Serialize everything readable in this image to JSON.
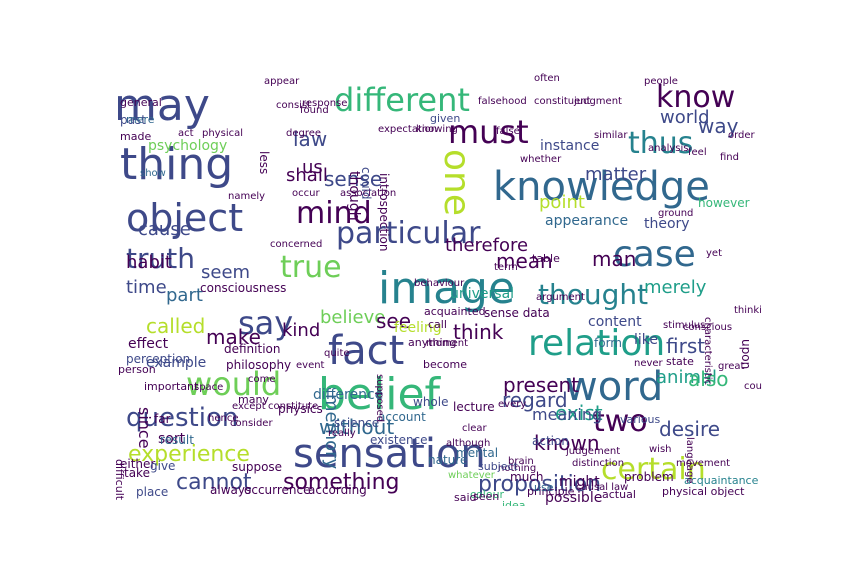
{
  "palette": {
    "dark_purple": "#440154",
    "indigo": "#3e4989",
    "blue": "#31688e",
    "teal": "#26828e",
    "green_teal": "#1f9e89",
    "green": "#35b779",
    "light_green": "#6ece58",
    "yellow_green": "#b5de2b",
    "yellow": "#fde725"
  },
  "words": [
    {
      "text": "may",
      "size": 44,
      "color": "#3e4989"
    },
    {
      "text": "thing",
      "size": 44,
      "color": "#3e4989"
    },
    {
      "text": "object",
      "size": 38,
      "color": "#3e4989"
    },
    {
      "text": "mind",
      "size": 30,
      "color": "#440154"
    },
    {
      "text": "different",
      "size": 32,
      "color": "#35b779"
    },
    {
      "text": "must",
      "size": 32,
      "color": "#440154"
    },
    {
      "text": "know",
      "size": 30,
      "color": "#440154"
    },
    {
      "text": "knowledge",
      "size": 40,
      "color": "#31688e"
    },
    {
      "text": "one",
      "size": 36,
      "color": "#b5de2b"
    },
    {
      "text": "particular",
      "size": 30,
      "color": "#3e4989"
    },
    {
      "text": "case",
      "size": 36,
      "color": "#31688e"
    },
    {
      "text": "view",
      "size": 26,
      "color": "#1f9e89"
    },
    {
      "text": "thus",
      "size": 30,
      "color": "#26828e"
    },
    {
      "text": "image",
      "size": 44,
      "color": "#26828e"
    },
    {
      "text": "thought",
      "size": 28,
      "color": "#26828e"
    },
    {
      "text": "true",
      "size": 30,
      "color": "#6ece58"
    },
    {
      "text": "truth",
      "size": 28,
      "color": "#3e4989"
    },
    {
      "text": "say",
      "size": 32,
      "color": "#3e4989"
    },
    {
      "text": "fact",
      "size": 40,
      "color": "#3e4989"
    },
    {
      "text": "relation",
      "size": 36,
      "color": "#1f9e89"
    },
    {
      "text": "would",
      "size": 32,
      "color": "#6ece58"
    },
    {
      "text": "belief",
      "size": 44,
      "color": "#35b779"
    },
    {
      "text": "word",
      "size": 40,
      "color": "#31688e"
    },
    {
      "text": "two",
      "size": 30,
      "color": "#440154"
    },
    {
      "text": "question",
      "size": 26,
      "color": "#3e4989"
    },
    {
      "text": "sensation",
      "size": 40,
      "color": "#3e4989"
    },
    {
      "text": "certain",
      "size": 30,
      "color": "#b5de2b"
    },
    {
      "text": "experience",
      "size": 22,
      "color": "#b5de2b"
    },
    {
      "text": "cannot",
      "size": 22,
      "color": "#3e4989"
    },
    {
      "text": "something",
      "size": 22,
      "color": "#440154"
    },
    {
      "text": "proposition",
      "size": 22,
      "color": "#3e4989"
    },
    {
      "text": "memory",
      "size": 18,
      "color": "#31688e"
    },
    {
      "text": "without",
      "size": 20,
      "color": "#31688e"
    },
    {
      "text": "desire",
      "size": 20,
      "color": "#3e4989"
    },
    {
      "text": "known",
      "size": 20,
      "color": "#440154"
    },
    {
      "text": "exist",
      "size": 20,
      "color": "#1f9e89"
    },
    {
      "text": "meaning",
      "size": 16,
      "color": "#3e4989"
    },
    {
      "text": "present",
      "size": 20,
      "color": "#440154"
    },
    {
      "text": "regard",
      "size": 20,
      "color": "#3e4989"
    },
    {
      "text": "animal",
      "size": 18,
      "color": "#1f9e89"
    },
    {
      "text": "also",
      "size": 20,
      "color": "#35b779"
    },
    {
      "text": "first",
      "size": 20,
      "color": "#3e4989"
    },
    {
      "text": "think",
      "size": 20,
      "color": "#440154"
    },
    {
      "text": "believe",
      "size": 18,
      "color": "#6ece58"
    },
    {
      "text": "see",
      "size": 20,
      "color": "#440154"
    },
    {
      "text": "kind",
      "size": 18,
      "color": "#440154"
    },
    {
      "text": "make",
      "size": 20,
      "color": "#440154"
    },
    {
      "text": "called",
      "size": 20,
      "color": "#b5de2b"
    },
    {
      "text": "part",
      "size": 18,
      "color": "#31688e"
    },
    {
      "text": "seem",
      "size": 18,
      "color": "#3e4989"
    },
    {
      "text": "mean",
      "size": 20,
      "color": "#440154"
    },
    {
      "text": "man",
      "size": 20,
      "color": "#440154"
    },
    {
      "text": "merely",
      "size": 18,
      "color": "#1f9e89"
    },
    {
      "text": "therefore",
      "size": 18,
      "color": "#440154"
    },
    {
      "text": "point",
      "size": 18,
      "color": "#b5de2b"
    },
    {
      "text": "matter",
      "size": 18,
      "color": "#3e4989"
    },
    {
      "text": "world",
      "size": 18,
      "color": "#3e4989"
    },
    {
      "text": "way",
      "size": 20,
      "color": "#3e4989"
    },
    {
      "text": "sense",
      "size": 20,
      "color": "#3e4989"
    },
    {
      "text": "shall",
      "size": 18,
      "color": "#440154"
    },
    {
      "text": "law",
      "size": 20,
      "color": "#3e4989"
    },
    {
      "text": "us",
      "size": 18,
      "color": "#440154"
    },
    {
      "text": "cause",
      "size": 18,
      "color": "#3e4989"
    },
    {
      "text": "habit",
      "size": 18,
      "color": "#440154"
    },
    {
      "text": "time",
      "size": 18,
      "color": "#3e4989"
    },
    {
      "text": "psychology",
      "size": 14,
      "color": "#6ece58"
    },
    {
      "text": "consciousness",
      "size": 12,
      "color": "#440154"
    },
    {
      "text": "effect",
      "size": 14,
      "color": "#440154"
    },
    {
      "text": "though",
      "size": 14,
      "color": "#440154"
    },
    {
      "text": "could",
      "size": 12,
      "color": "#3e4989"
    },
    {
      "text": "introspection",
      "size": 12,
      "color": "#440154"
    },
    {
      "text": "appearance",
      "size": 14,
      "color": "#31688e"
    },
    {
      "text": "instance",
      "size": 14,
      "color": "#3e4989"
    },
    {
      "text": "theory",
      "size": 14,
      "color": "#3e4989"
    },
    {
      "text": "however",
      "size": 12,
      "color": "#35b779"
    },
    {
      "text": "universal",
      "size": 14,
      "color": "#1f9e89"
    },
    {
      "text": "content",
      "size": 14,
      "color": "#3e4989"
    },
    {
      "text": "form",
      "size": 12,
      "color": "#31688e"
    },
    {
      "text": "like",
      "size": 14,
      "color": "#3e4989"
    },
    {
      "text": "sense data",
      "size": 12,
      "color": "#440154"
    },
    {
      "text": "feeling",
      "size": 14,
      "color": "#b5de2b"
    },
    {
      "text": "perception",
      "size": 12,
      "color": "#3e4989"
    },
    {
      "text": "example",
      "size": 14,
      "color": "#3e4989"
    },
    {
      "text": "since",
      "size": 16,
      "color": "#440154"
    },
    {
      "text": "difference",
      "size": 14,
      "color": "#31688e"
    },
    {
      "text": "physics",
      "size": 12,
      "color": "#440154"
    },
    {
      "text": "might",
      "size": 14,
      "color": "#440154"
    },
    {
      "text": "sort",
      "size": 14,
      "color": "#440154"
    },
    {
      "text": "possible",
      "size": 14,
      "color": "#440154"
    },
    {
      "text": "reason",
      "size": 14,
      "color": "#440154"
    },
    {
      "text": "place",
      "size": 12,
      "color": "#3e4989"
    },
    {
      "text": "according",
      "size": 12,
      "color": "#440154"
    },
    {
      "text": "occurrence",
      "size": 12,
      "color": "#440154"
    },
    {
      "text": "physical object",
      "size": 11,
      "color": "#440154"
    },
    {
      "text": "acquaintance",
      "size": 11,
      "color": "#26828e"
    },
    {
      "text": "mental",
      "size": 12,
      "color": "#31688e"
    },
    {
      "text": "either",
      "size": 12,
      "color": "#440154"
    },
    {
      "text": "suppose",
      "size": 12,
      "color": "#440154"
    },
    {
      "text": "always",
      "size": 12,
      "color": "#440154"
    },
    {
      "text": "take",
      "size": 12,
      "color": "#440154"
    },
    {
      "text": "definition",
      "size": 12,
      "color": "#440154"
    },
    {
      "text": "philosophy",
      "size": 12,
      "color": "#440154"
    },
    {
      "text": "nature",
      "size": 12,
      "color": "#31688e"
    },
    {
      "text": "colour",
      "size": 11,
      "color": "#35b779"
    },
    {
      "text": "principle",
      "size": 11,
      "color": "#440154"
    },
    {
      "text": "whatever",
      "size": 10,
      "color": "#6ece58"
    },
    {
      "text": "much",
      "size": 12,
      "color": "#440154"
    },
    {
      "text": "even",
      "size": 12,
      "color": "#3e4989"
    },
    {
      "text": "actual",
      "size": 11,
      "color": "#440154"
    },
    {
      "text": "problem",
      "size": 12,
      "color": "#440154"
    },
    {
      "text": "lecture",
      "size": 12,
      "color": "#440154"
    },
    {
      "text": "whole",
      "size": 12,
      "color": "#3e4989"
    },
    {
      "text": "science",
      "size": 12,
      "color": "#3e4989"
    },
    {
      "text": "account",
      "size": 12,
      "color": "#31688e"
    },
    {
      "text": "existence",
      "size": 12,
      "color": "#3e4989"
    },
    {
      "text": "action",
      "size": 12,
      "color": "#3e4989"
    },
    {
      "text": "general",
      "size": 11,
      "color": "#440154"
    },
    {
      "text": "past",
      "size": 12,
      "color": "#3e4989"
    },
    {
      "text": "mere",
      "size": 11,
      "color": "#31688e"
    },
    {
      "text": "made",
      "size": 11,
      "color": "#440154"
    },
    {
      "text": "show",
      "size": 10,
      "color": "#31688e"
    },
    {
      "text": "important",
      "size": 11,
      "color": "#440154"
    },
    {
      "text": "far",
      "size": 12,
      "color": "#440154"
    },
    {
      "text": "result",
      "size": 12,
      "color": "#31688e"
    },
    {
      "text": "give",
      "size": 12,
      "color": "#3e4989"
    },
    {
      "text": "person",
      "size": 11,
      "color": "#440154"
    },
    {
      "text": "difficult",
      "size": 11,
      "color": "#440154"
    },
    {
      "text": "nothing",
      "size": 10,
      "color": "#440154"
    },
    {
      "text": "brain",
      "size": 10,
      "color": "#440154"
    },
    {
      "text": "said",
      "size": 11,
      "color": "#440154"
    },
    {
      "text": "idea",
      "size": 11,
      "color": "#35b779"
    },
    {
      "text": "seen",
      "size": 11,
      "color": "#440154"
    },
    {
      "text": "subject",
      "size": 11,
      "color": "#3e4989"
    },
    {
      "text": "use",
      "size": 11,
      "color": "#31688e"
    },
    {
      "text": "causal law",
      "size": 10,
      "color": "#440154"
    },
    {
      "text": "clear",
      "size": 10,
      "color": "#440154"
    },
    {
      "text": "judgement",
      "size": 10,
      "color": "#440154"
    },
    {
      "text": "distinction",
      "size": 10,
      "color": "#440154"
    },
    {
      "text": "various",
      "size": 11,
      "color": "#3e4989"
    },
    {
      "text": "state",
      "size": 11,
      "color": "#440154"
    },
    {
      "text": "upon",
      "size": 12,
      "color": "#440154"
    },
    {
      "text": "course",
      "size": 10,
      "color": "#440154"
    },
    {
      "text": "great",
      "size": 10,
      "color": "#440154"
    },
    {
      "text": "characteristic",
      "size": 10,
      "color": "#440154"
    },
    {
      "text": "stimulus",
      "size": 10,
      "color": "#440154"
    },
    {
      "text": "thinking",
      "size": 10,
      "color": "#440154"
    },
    {
      "text": "ground",
      "size": 10,
      "color": "#440154"
    },
    {
      "text": "yet",
      "size": 10,
      "color": "#440154"
    },
    {
      "text": "order",
      "size": 10,
      "color": "#440154"
    },
    {
      "text": "find",
      "size": 10,
      "color": "#440154"
    },
    {
      "text": "feel",
      "size": 10,
      "color": "#440154"
    },
    {
      "text": "analysis",
      "size": 10,
      "color": "#440154"
    },
    {
      "text": "people",
      "size": 10,
      "color": "#440154"
    },
    {
      "text": "false",
      "size": 10,
      "color": "#440154"
    },
    {
      "text": "similar",
      "size": 10,
      "color": "#440154"
    },
    {
      "text": "given",
      "size": 11,
      "color": "#3e4989"
    },
    {
      "text": "found",
      "size": 10,
      "color": "#440154"
    },
    {
      "text": "appear",
      "size": 10,
      "color": "#440154"
    },
    {
      "text": "consist",
      "size": 10,
      "color": "#440154"
    },
    {
      "text": "less",
      "size": 12,
      "color": "#440154"
    },
    {
      "text": "degree",
      "size": 10,
      "color": "#440154"
    },
    {
      "text": "occur",
      "size": 10,
      "color": "#440154"
    },
    {
      "text": "act",
      "size": 10,
      "color": "#440154"
    },
    {
      "text": "physical",
      "size": 10,
      "color": "#440154"
    },
    {
      "text": "namely",
      "size": 10,
      "color": "#440154"
    },
    {
      "text": "association",
      "size": 10,
      "color": "#440154"
    },
    {
      "text": "concerned",
      "size": 10,
      "color": "#440154"
    },
    {
      "text": "come",
      "size": 10,
      "color": "#440154"
    },
    {
      "text": "many",
      "size": 11,
      "color": "#440154"
    },
    {
      "text": "except",
      "size": 10,
      "color": "#440154"
    },
    {
      "text": "consider",
      "size": 10,
      "color": "#440154"
    },
    {
      "text": "hence",
      "size": 10,
      "color": "#440154"
    },
    {
      "text": "constitute",
      "size": 10,
      "color": "#440154"
    },
    {
      "text": "supposed",
      "size": 10,
      "color": "#440154"
    },
    {
      "text": "really",
      "size": 10,
      "color": "#440154"
    },
    {
      "text": "moment",
      "size": 10,
      "color": "#440154"
    },
    {
      "text": "become",
      "size": 11,
      "color": "#440154"
    },
    {
      "text": "anything",
      "size": 11,
      "color": "#440154"
    },
    {
      "text": "acquainted",
      "size": 11,
      "color": "#440154"
    },
    {
      "text": "call",
      "size": 11,
      "color": "#440154"
    },
    {
      "text": "term",
      "size": 10,
      "color": "#440154"
    },
    {
      "text": "table",
      "size": 11,
      "color": "#440154"
    },
    {
      "text": "argument",
      "size": 10,
      "color": "#440154"
    },
    {
      "text": "whether",
      "size": 10,
      "color": "#440154"
    },
    {
      "text": "conscious",
      "size": 10,
      "color": "#440154"
    },
    {
      "text": "movement",
      "size": 10,
      "color": "#440154"
    },
    {
      "text": "every",
      "size": 10,
      "color": "#440154"
    },
    {
      "text": "although",
      "size": 10,
      "color": "#440154"
    },
    {
      "text": "quite",
      "size": 10,
      "color": "#440154"
    },
    {
      "text": "event",
      "size": 10,
      "color": "#440154"
    },
    {
      "text": "space",
      "size": 10,
      "color": "#440154"
    },
    {
      "text": "behaviour",
      "size": 10,
      "color": "#440154"
    },
    {
      "text": "never",
      "size": 10,
      "color": "#440154"
    },
    {
      "text": "wish",
      "size": 10,
      "color": "#440154"
    },
    {
      "text": "language",
      "size": 10,
      "color": "#440154"
    },
    {
      "text": "response",
      "size": 10,
      "color": "#440154"
    },
    {
      "text": "often",
      "size": 10,
      "color": "#440154"
    },
    {
      "text": "falsehood",
      "size": 10,
      "color": "#440154"
    },
    {
      "text": "constituent",
      "size": 10,
      "color": "#440154"
    },
    {
      "text": "judgment",
      "size": 10,
      "color": "#440154"
    },
    {
      "text": "expectation",
      "size": 10,
      "color": "#440154"
    },
    {
      "text": "knowing",
      "size": 10,
      "color": "#440154"
    }
  ]
}
